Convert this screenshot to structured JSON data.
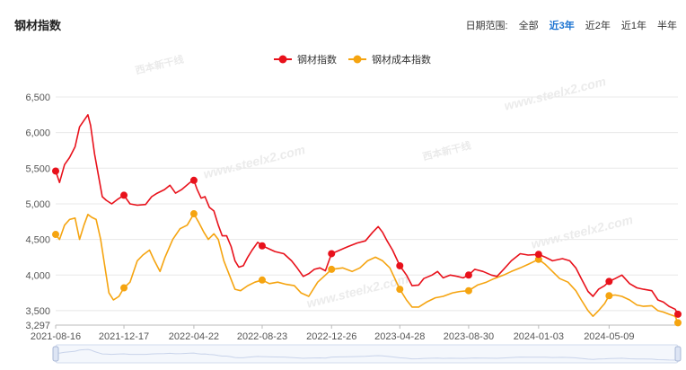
{
  "header": {
    "title": "钢材指数",
    "range_label": "日期范围:",
    "ranges": [
      "全部",
      "近3年",
      "近2年",
      "近1年",
      "半年"
    ],
    "active_range": "近3年"
  },
  "watermark": {
    "url": "www.steelx2.com",
    "brand": "西本新干线"
  },
  "chart_data": {
    "type": "line",
    "legend_position": "top-center",
    "grid": true,
    "ylim": [
      3297,
      6500
    ],
    "y_ticks": [
      3297,
      3500,
      4000,
      4500,
      5000,
      5500,
      6000,
      6500
    ],
    "y_tick_labels": [
      "3,297",
      "3,500",
      "4,000",
      "4,500",
      "5,000",
      "5,500",
      "6,000",
      "6,500"
    ],
    "x_tick_labels": [
      "2021-08-16",
      "2021-12-17",
      "2022-04-22",
      "2022-08-23",
      "2022-12-26",
      "2023-04-28",
      "2023-08-30",
      "2024-01-03",
      "2024-05-09"
    ],
    "x_range": [
      "2021-08-16",
      "2024-09-10"
    ],
    "series": [
      {
        "name": "钢材指数",
        "color": "#e8111b",
        "points": [
          [
            "2021-08-16",
            5460
          ],
          [
            "2021-08-23",
            5300
          ],
          [
            "2021-09-01",
            5550
          ],
          [
            "2021-09-10",
            5650
          ],
          [
            "2021-09-20",
            5800
          ],
          [
            "2021-09-28",
            6080
          ],
          [
            "2021-10-06",
            6170
          ],
          [
            "2021-10-13",
            6250
          ],
          [
            "2021-10-18",
            6100
          ],
          [
            "2021-10-25",
            5700
          ],
          [
            "2021-11-01",
            5400
          ],
          [
            "2021-11-08",
            5100
          ],
          [
            "2021-11-15",
            5050
          ],
          [
            "2021-11-25",
            5000
          ],
          [
            "2021-12-05",
            5060
          ],
          [
            "2021-12-17",
            5120
          ],
          [
            "2021-12-28",
            5000
          ],
          [
            "2022-01-10",
            4980
          ],
          [
            "2022-01-25",
            4990
          ],
          [
            "2022-02-05",
            5100
          ],
          [
            "2022-02-15",
            5150
          ],
          [
            "2022-02-28",
            5200
          ],
          [
            "2022-03-10",
            5260
          ],
          [
            "2022-03-20",
            5150
          ],
          [
            "2022-03-31",
            5200
          ],
          [
            "2022-04-15",
            5300
          ],
          [
            "2022-04-22",
            5330
          ],
          [
            "2022-04-28",
            5200
          ],
          [
            "2022-05-05",
            5080
          ],
          [
            "2022-05-12",
            5100
          ],
          [
            "2022-05-20",
            4950
          ],
          [
            "2022-05-28",
            4900
          ],
          [
            "2022-06-05",
            4700
          ],
          [
            "2022-06-12",
            4550
          ],
          [
            "2022-06-20",
            4550
          ],
          [
            "2022-06-28",
            4400
          ],
          [
            "2022-07-05",
            4200
          ],
          [
            "2022-07-12",
            4110
          ],
          [
            "2022-07-20",
            4130
          ],
          [
            "2022-07-28",
            4250
          ],
          [
            "2022-08-05",
            4350
          ],
          [
            "2022-08-15",
            4460
          ],
          [
            "2022-08-23",
            4410
          ],
          [
            "2022-09-01",
            4380
          ],
          [
            "2022-09-15",
            4330
          ],
          [
            "2022-10-01",
            4300
          ],
          [
            "2022-10-15",
            4200
          ],
          [
            "2022-10-25",
            4100
          ],
          [
            "2022-11-05",
            3980
          ],
          [
            "2022-11-15",
            4020
          ],
          [
            "2022-11-25",
            4080
          ],
          [
            "2022-12-05",
            4100
          ],
          [
            "2022-12-15",
            4060
          ],
          [
            "2022-12-26",
            4300
          ],
          [
            "2023-01-10",
            4350
          ],
          [
            "2023-01-25",
            4400
          ],
          [
            "2023-02-10",
            4450
          ],
          [
            "2023-02-25",
            4480
          ],
          [
            "2023-03-10",
            4600
          ],
          [
            "2023-03-20",
            4680
          ],
          [
            "2023-03-28",
            4600
          ],
          [
            "2023-04-05",
            4480
          ],
          [
            "2023-04-15",
            4350
          ],
          [
            "2023-04-28",
            4130
          ],
          [
            "2023-05-10",
            4000
          ],
          [
            "2023-05-20",
            3850
          ],
          [
            "2023-06-01",
            3860
          ],
          [
            "2023-06-10",
            3950
          ],
          [
            "2023-06-25",
            4000
          ],
          [
            "2023-07-05",
            4050
          ],
          [
            "2023-07-15",
            3960
          ],
          [
            "2023-07-28",
            4000
          ],
          [
            "2023-08-10",
            3980
          ],
          [
            "2023-08-20",
            3960
          ],
          [
            "2023-08-30",
            4000
          ],
          [
            "2023-09-10",
            4080
          ],
          [
            "2023-09-25",
            4050
          ],
          [
            "2023-10-10",
            4000
          ],
          [
            "2023-10-20",
            3980
          ],
          [
            "2023-11-01",
            4080
          ],
          [
            "2023-11-15",
            4200
          ],
          [
            "2023-12-01",
            4300
          ],
          [
            "2023-12-15",
            4280
          ],
          [
            "2024-01-03",
            4290
          ],
          [
            "2024-01-15",
            4250
          ],
          [
            "2024-01-28",
            4200
          ],
          [
            "2024-02-15",
            4230
          ],
          [
            "2024-02-28",
            4200
          ],
          [
            "2024-03-10",
            4100
          ],
          [
            "2024-03-20",
            3950
          ],
          [
            "2024-04-01",
            3770
          ],
          [
            "2024-04-10",
            3700
          ],
          [
            "2024-04-20",
            3800
          ],
          [
            "2024-05-01",
            3850
          ],
          [
            "2024-05-09",
            3910
          ],
          [
            "2024-05-20",
            3950
          ],
          [
            "2024-06-01",
            4000
          ],
          [
            "2024-06-15",
            3880
          ],
          [
            "2024-06-28",
            3820
          ],
          [
            "2024-07-10",
            3800
          ],
          [
            "2024-07-25",
            3780
          ],
          [
            "2024-08-05",
            3650
          ],
          [
            "2024-08-15",
            3620
          ],
          [
            "2024-08-25",
            3560
          ],
          [
            "2024-09-05",
            3520
          ],
          [
            "2024-09-10",
            3450
          ]
        ],
        "markers": [
          [
            "2021-08-16",
            5460
          ],
          [
            "2021-12-17",
            5120
          ],
          [
            "2022-04-22",
            5330
          ],
          [
            "2022-08-23",
            4410
          ],
          [
            "2022-12-26",
            4300
          ],
          [
            "2023-04-28",
            4130
          ],
          [
            "2023-08-30",
            4000
          ],
          [
            "2024-01-03",
            4290
          ],
          [
            "2024-05-09",
            3910
          ],
          [
            "2024-09-10",
            3450
          ]
        ]
      },
      {
        "name": "钢材成本指数",
        "color": "#f5a410",
        "points": [
          [
            "2021-08-16",
            4570
          ],
          [
            "2021-08-23",
            4500
          ],
          [
            "2021-09-01",
            4700
          ],
          [
            "2021-09-10",
            4780
          ],
          [
            "2021-09-20",
            4800
          ],
          [
            "2021-09-28",
            4500
          ],
          [
            "2021-10-06",
            4700
          ],
          [
            "2021-10-13",
            4850
          ],
          [
            "2021-10-20",
            4810
          ],
          [
            "2021-10-28",
            4780
          ],
          [
            "2021-11-05",
            4500
          ],
          [
            "2021-11-12",
            4150
          ],
          [
            "2021-11-20",
            3750
          ],
          [
            "2021-11-28",
            3650
          ],
          [
            "2021-12-08",
            3700
          ],
          [
            "2021-12-17",
            3820
          ],
          [
            "2021-12-28",
            3900
          ],
          [
            "2022-01-10",
            4200
          ],
          [
            "2022-01-20",
            4280
          ],
          [
            "2022-02-01",
            4350
          ],
          [
            "2022-02-10",
            4200
          ],
          [
            "2022-02-20",
            4050
          ],
          [
            "2022-03-01",
            4250
          ],
          [
            "2022-03-15",
            4500
          ],
          [
            "2022-03-28",
            4650
          ],
          [
            "2022-04-10",
            4700
          ],
          [
            "2022-04-22",
            4860
          ],
          [
            "2022-04-30",
            4750
          ],
          [
            "2022-05-10",
            4600
          ],
          [
            "2022-05-18",
            4500
          ],
          [
            "2022-05-28",
            4580
          ],
          [
            "2022-06-05",
            4500
          ],
          [
            "2022-06-15",
            4200
          ],
          [
            "2022-06-25",
            4000
          ],
          [
            "2022-07-05",
            3800
          ],
          [
            "2022-07-15",
            3780
          ],
          [
            "2022-07-28",
            3850
          ],
          [
            "2022-08-10",
            3900
          ],
          [
            "2022-08-23",
            3930
          ],
          [
            "2022-09-05",
            3880
          ],
          [
            "2022-09-20",
            3900
          ],
          [
            "2022-10-05",
            3870
          ],
          [
            "2022-10-20",
            3850
          ],
          [
            "2022-11-01",
            3750
          ],
          [
            "2022-11-15",
            3700
          ],
          [
            "2022-12-01",
            3900
          ],
          [
            "2022-12-15",
            4000
          ],
          [
            "2022-12-26",
            4080
          ],
          [
            "2023-01-15",
            4100
          ],
          [
            "2023-02-01",
            4050
          ],
          [
            "2023-02-15",
            4100
          ],
          [
            "2023-03-01",
            4200
          ],
          [
            "2023-03-15",
            4250
          ],
          [
            "2023-03-28",
            4200
          ],
          [
            "2023-04-10",
            4100
          ],
          [
            "2023-04-28",
            3800
          ],
          [
            "2023-05-10",
            3650
          ],
          [
            "2023-05-20",
            3550
          ],
          [
            "2023-06-01",
            3550
          ],
          [
            "2023-06-15",
            3620
          ],
          [
            "2023-07-01",
            3680
          ],
          [
            "2023-07-15",
            3700
          ],
          [
            "2023-08-01",
            3750
          ],
          [
            "2023-08-15",
            3770
          ],
          [
            "2023-08-30",
            3780
          ],
          [
            "2023-09-15",
            3860
          ],
          [
            "2023-10-01",
            3900
          ],
          [
            "2023-10-15",
            3950
          ],
          [
            "2023-11-01",
            4000
          ],
          [
            "2023-11-15",
            4050
          ],
          [
            "2023-12-01",
            4100
          ],
          [
            "2023-12-15",
            4150
          ],
          [
            "2024-01-03",
            4220
          ],
          [
            "2024-01-15",
            4150
          ],
          [
            "2024-01-28",
            4050
          ],
          [
            "2024-02-10",
            3950
          ],
          [
            "2024-02-25",
            3900
          ],
          [
            "2024-03-10",
            3780
          ],
          [
            "2024-03-20",
            3650
          ],
          [
            "2024-04-01",
            3500
          ],
          [
            "2024-04-10",
            3420
          ],
          [
            "2024-04-20",
            3500
          ],
          [
            "2024-05-01",
            3600
          ],
          [
            "2024-05-09",
            3710
          ],
          [
            "2024-05-20",
            3720
          ],
          [
            "2024-06-01",
            3700
          ],
          [
            "2024-06-15",
            3650
          ],
          [
            "2024-06-28",
            3580
          ],
          [
            "2024-07-10",
            3560
          ],
          [
            "2024-07-25",
            3570
          ],
          [
            "2024-08-05",
            3500
          ],
          [
            "2024-08-15",
            3480
          ],
          [
            "2024-08-25",
            3450
          ],
          [
            "2024-09-05",
            3420
          ],
          [
            "2024-09-10",
            3330
          ]
        ],
        "markers": [
          [
            "2021-08-16",
            4570
          ],
          [
            "2021-12-17",
            3820
          ],
          [
            "2022-04-22",
            4860
          ],
          [
            "2022-08-23",
            3930
          ],
          [
            "2022-12-26",
            4080
          ],
          [
            "2023-04-28",
            3800
          ],
          [
            "2023-08-30",
            3780
          ],
          [
            "2024-01-03",
            4220
          ],
          [
            "2024-05-09",
            3710
          ],
          [
            "2024-09-10",
            3330
          ]
        ]
      }
    ]
  }
}
